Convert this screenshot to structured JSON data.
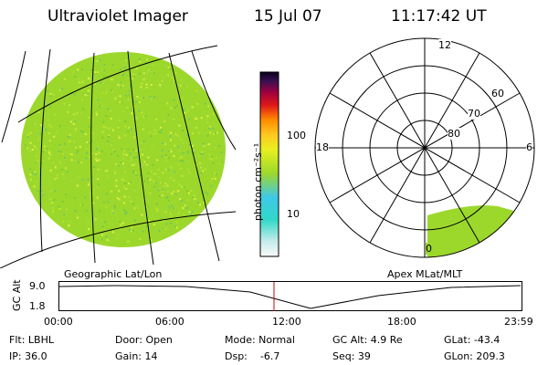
{
  "header": {
    "title": "Ultraviolet Imager",
    "date": "15 Jul 07",
    "time": "11:17:42 UT"
  },
  "colors": {
    "disk_green": "#9cd82c",
    "background": "#ffffff",
    "grid_line": "#000000",
    "alt_marker": "#d00000"
  },
  "left_panel": {
    "caption": "Geographic Lat/Lon"
  },
  "colorbar": {
    "unit_label": "photon cm⁻²s⁻¹",
    "tick_labels": [
      "100",
      "10"
    ]
  },
  "right_panel": {
    "caption": "Apex MLat/MLT",
    "mlt_labels": {
      "top": "12",
      "left": "18",
      "right": "6",
      "bottom": "0"
    },
    "mlat_labels": [
      "60",
      "70",
      "80"
    ]
  },
  "altitude_plot": {
    "ylabel": "GC Alt",
    "yticks": [
      "9.0",
      "1.8"
    ],
    "xticks": [
      "00:00",
      "06:00",
      "12:00",
      "18:00",
      "23:59"
    ]
  },
  "footer": {
    "filter": "Flt: LBHL",
    "ip": "IP: 36.0",
    "door": "Door: Open",
    "gain": "Gain: 14",
    "mode": "Mode: Normal",
    "dsp": "Dsp:    -6.7",
    "gc_alt": "GC Alt: 4.9 Re",
    "seq": "Seq: 39",
    "glat": "GLat: -43.4",
    "glon": "GLon: 209.3"
  }
}
